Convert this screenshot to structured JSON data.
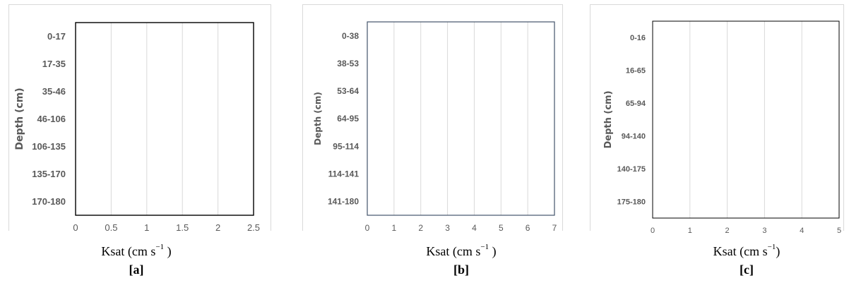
{
  "chart_data": [
    {
      "type": "bar",
      "orientation": "horizontal",
      "caption": "[a]",
      "xlabel": {
        "base": "Ksat (cm s",
        "sup": "−1",
        "tail": " )"
      },
      "ylabel": "Depth (cm)",
      "categories": [
        "0-17",
        "17-35",
        "35-46",
        "46-106",
        "106-135",
        "135-170",
        "170-180"
      ],
      "xticks": [
        "0",
        "0.5",
        "1",
        "1.5",
        "2",
        "2.5"
      ],
      "xlim": [
        0,
        2.5
      ],
      "grid": true
    },
    {
      "type": "bar",
      "orientation": "horizontal",
      "caption": "[b]",
      "xlabel": {
        "base": "Ksat (cm s",
        "sup": "−1",
        "tail": " )"
      },
      "ylabel": "Depth (cm)",
      "categories": [
        "0-38",
        "38-53",
        "53-64",
        "64-95",
        "95-114",
        "114-141",
        "141-180"
      ],
      "xticks": [
        "0",
        "1",
        "2",
        "3",
        "4",
        "5",
        "6",
        "7"
      ],
      "xlim": [
        0,
        7
      ],
      "grid": true
    },
    {
      "type": "bar",
      "orientation": "horizontal",
      "caption": "[c]",
      "xlabel": {
        "base": "Ksat (cm s",
        "sup": "−1",
        "tail": ")"
      },
      "ylabel": "Depth (cm)",
      "categories": [
        "0-16",
        "16-65",
        "65-94",
        "94-140",
        "140-175",
        "175-180"
      ],
      "xticks": [
        "0",
        "1",
        "2",
        "3",
        "4",
        "5"
      ],
      "xlim": [
        0,
        5
      ],
      "grid": true
    }
  ]
}
